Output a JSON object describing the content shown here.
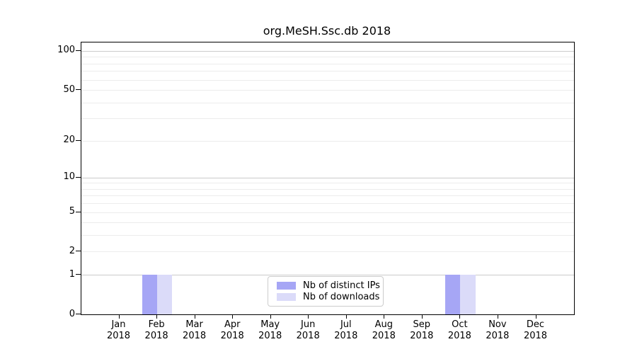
{
  "chart_data": {
    "type": "bar",
    "title": "org.MeSH.Ssc.db 2018",
    "categories": [
      "Jan",
      "Feb",
      "Mar",
      "Apr",
      "May",
      "Jun",
      "Jul",
      "Aug",
      "Sep",
      "Oct",
      "Nov",
      "Dec"
    ],
    "x_year_label": "2018",
    "series": [
      {
        "name": "Nb of distinct IPs",
        "color": "#a6a6f5",
        "values": [
          0,
          1,
          0,
          0,
          0,
          0,
          0,
          0,
          0,
          1,
          0,
          0
        ]
      },
      {
        "name": "Nb of downloads",
        "color": "#dbdbf9",
        "values": [
          0,
          1,
          0,
          0,
          0,
          0,
          0,
          0,
          0,
          1,
          0,
          0
        ]
      }
    ],
    "yscale": "log1p",
    "ylim": [
      0,
      116
    ],
    "yticks": [
      0,
      1,
      2,
      5,
      10,
      20,
      50,
      100
    ],
    "grid_major": [
      1,
      10,
      100
    ],
    "grid_minor": [
      2,
      3,
      4,
      5,
      6,
      7,
      8,
      9,
      20,
      30,
      40,
      50,
      60,
      70,
      80,
      90
    ],
    "grid": "on",
    "legend_position": "lower center",
    "colors": {
      "grid_minor": "#ececec",
      "grid_major": "#cbcbcb",
      "spine": "#000000",
      "legend_border": "#cccccc",
      "text": "#000000"
    }
  }
}
